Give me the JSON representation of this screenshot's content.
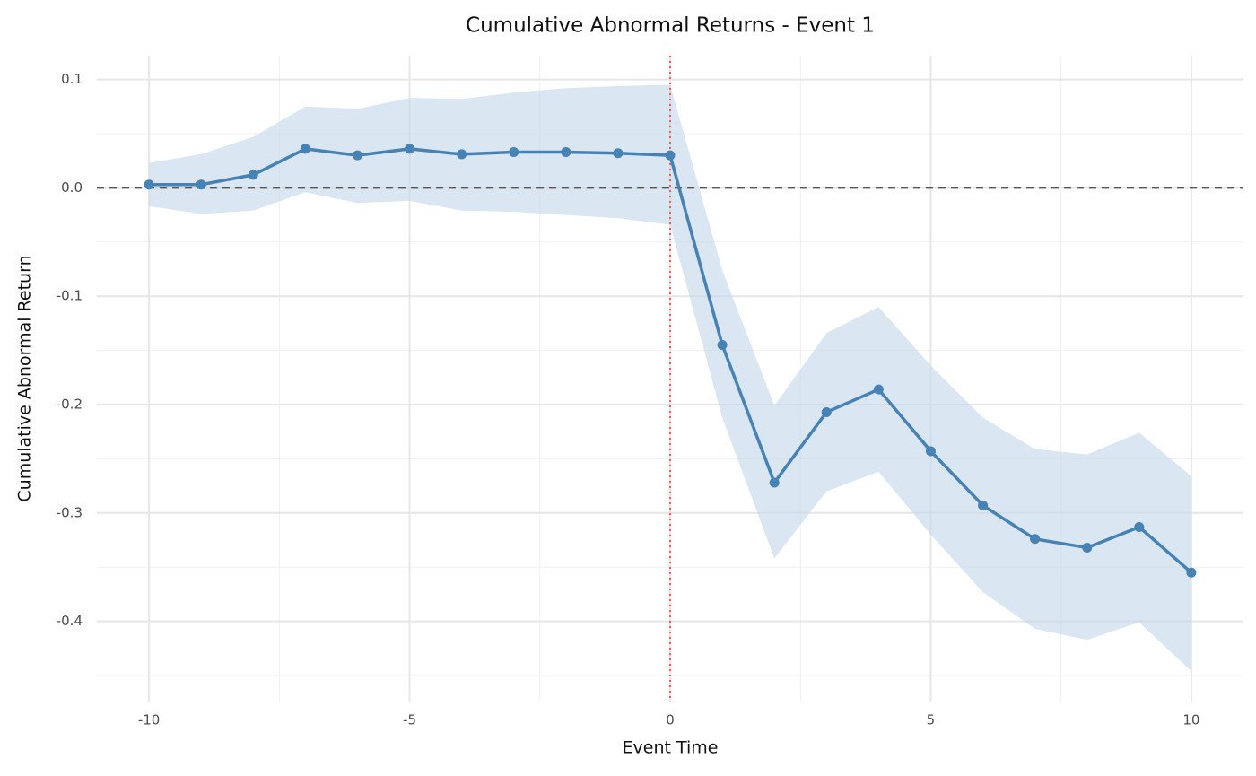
{
  "chart_data": {
    "type": "line",
    "title": "Cumulative Abnormal Returns - Event 1",
    "x_label": "Event Time",
    "y_label": "Cumulative Abnormal Return",
    "x": [
      -10,
      -9,
      -8,
      -7,
      -6,
      -5,
      -4,
      -3,
      -2,
      -1,
      0,
      1,
      2,
      3,
      4,
      5,
      6,
      7,
      8,
      9,
      10
    ],
    "values": [
      0.003,
      0.003,
      0.012,
      0.036,
      0.03,
      0.036,
      0.031,
      0.033,
      0.033,
      0.032,
      0.03,
      -0.145,
      -0.272,
      -0.207,
      -0.186,
      -0.243,
      -0.293,
      -0.324,
      -0.332,
      -0.313,
      -0.355
    ],
    "upper": [
      0.023,
      0.031,
      0.047,
      0.075,
      0.073,
      0.083,
      0.082,
      0.088,
      0.092,
      0.094,
      0.095,
      -0.076,
      -0.201,
      -0.134,
      -0.11,
      -0.164,
      -0.212,
      -0.241,
      -0.246,
      -0.226,
      -0.266
    ],
    "lower": [
      -0.017,
      -0.024,
      -0.021,
      -0.004,
      -0.014,
      -0.012,
      -0.021,
      -0.022,
      -0.025,
      -0.028,
      -0.034,
      -0.212,
      -0.342,
      -0.28,
      -0.262,
      -0.32,
      -0.373,
      -0.407,
      -0.417,
      -0.401,
      -0.446
    ],
    "color": "#4682b4",
    "band_color": "#c6d8ea",
    "xlim": [
      -11,
      11
    ],
    "ylim": [
      -0.474,
      0.122
    ],
    "xticks": [
      -10,
      -5,
      0,
      5,
      10
    ],
    "yticks": [
      0.1,
      {
        "value": 0,
        "label": "0.0"
      },
      -0.1,
      -0.2,
      -0.3,
      -0.4
    ],
    "x_minor_ticks": [
      -7.5,
      -2.5,
      2.5,
      7.5
    ],
    "y_minor_ticks": [
      0.05,
      -0.05,
      -0.15,
      -0.25,
      -0.35,
      -0.45
    ],
    "grid": true,
    "hline": {
      "value": 0,
      "color": "#555555"
    },
    "vline": {
      "value": 0,
      "color": "#e8605a"
    }
  }
}
